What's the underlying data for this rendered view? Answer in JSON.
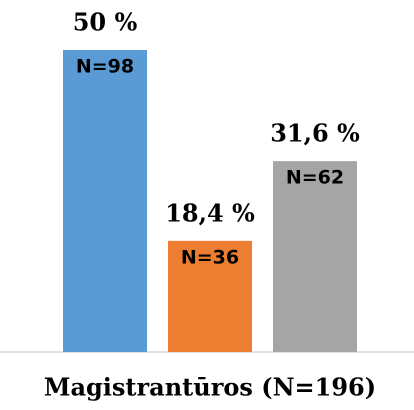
{
  "chart_data": {
    "type": "bar",
    "categories": [
      "Magistrantūros (N=196)"
    ],
    "ylim": [
      0,
      50
    ],
    "series": [
      {
        "color": "#5b9bd5",
        "values": [
          50
        ],
        "value_labels": [
          "50 %"
        ],
        "sample_labels": [
          "N=98"
        ]
      },
      {
        "color": "#ed7d31",
        "values": [
          18.4
        ],
        "value_labels": [
          "18,4 %"
        ],
        "sample_labels": [
          "N=36"
        ]
      },
      {
        "color": "#a5a5a5",
        "values": [
          31.6
        ],
        "value_labels": [
          "31,6 %"
        ],
        "sample_labels": [
          "N=62"
        ]
      }
    ]
  }
}
